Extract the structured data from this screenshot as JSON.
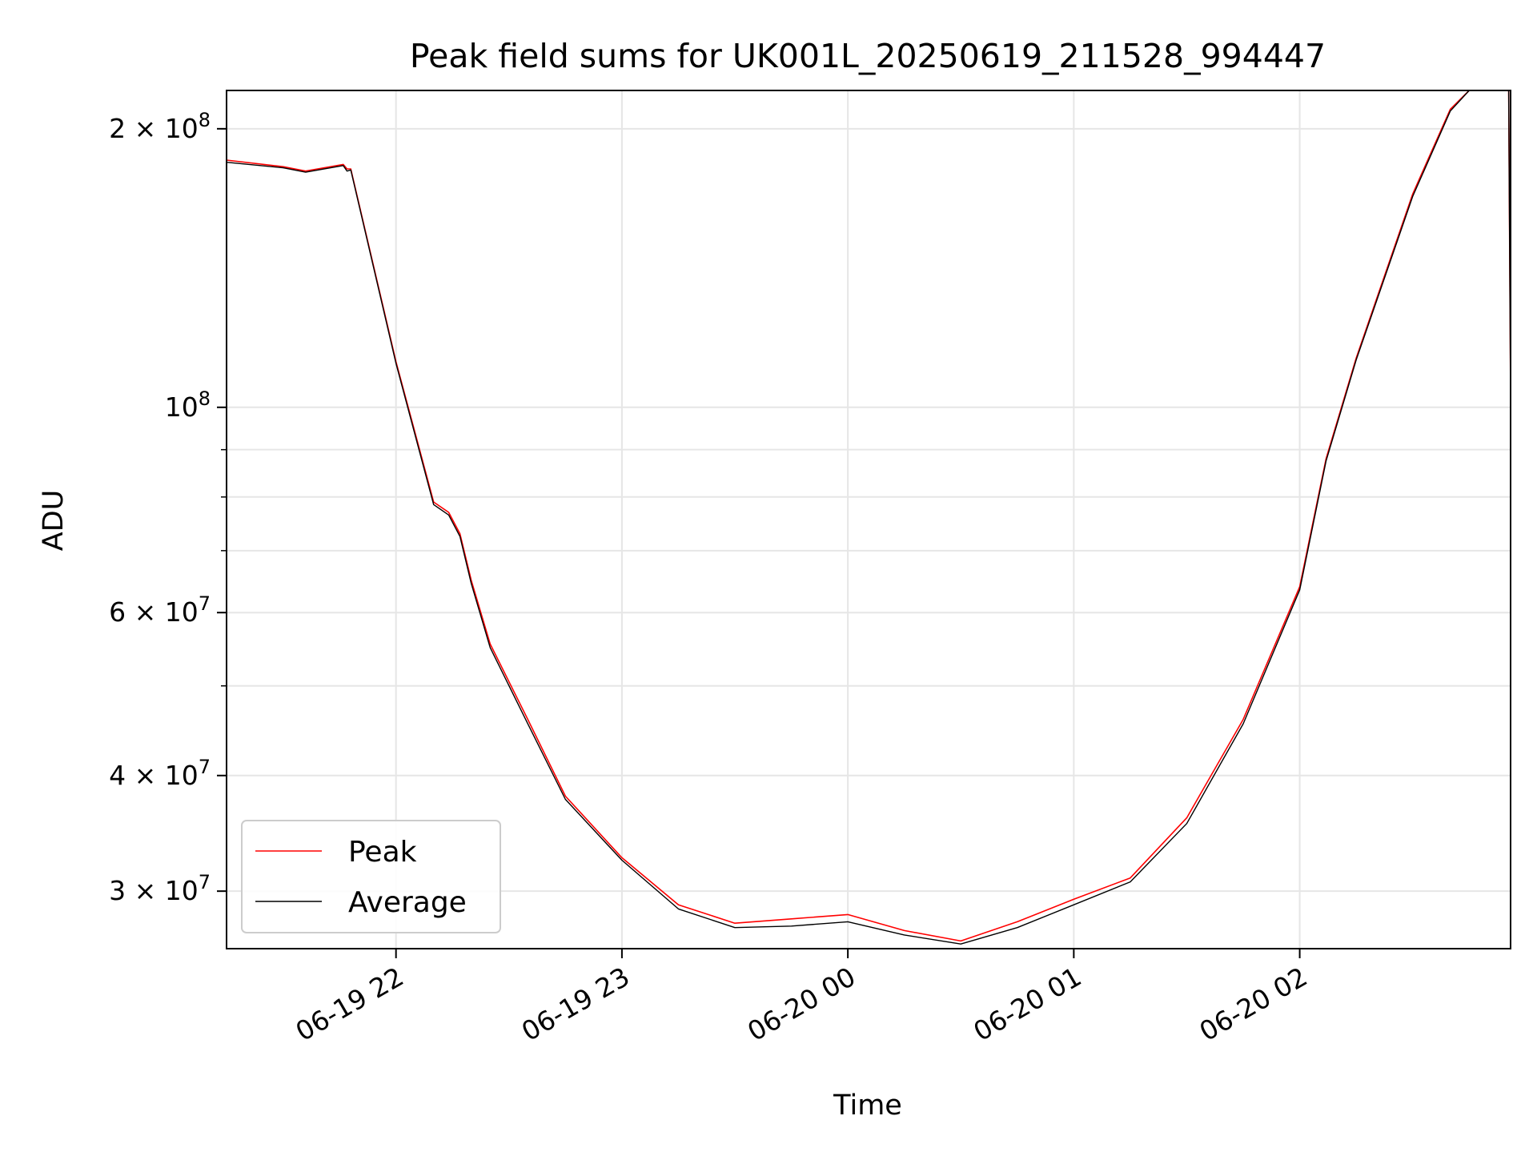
{
  "chart_data": {
    "type": "line",
    "title": "Peak field sums for UK001L_20250619_211528_994447",
    "xlabel": "Time",
    "ylabel": "ADU",
    "yscale": "log",
    "grid": true,
    "legend_placement": "lower-left",
    "xlim": [
      "2025-06-19 21:15",
      "2025-06-20 02:56"
    ],
    "ylim": [
      26000000,
      220000000
    ],
    "x_ticks": [
      {
        "value": "2025-06-19 22:00",
        "label": "06-19 22"
      },
      {
        "value": "2025-06-19 23:00",
        "label": "06-19 23"
      },
      {
        "value": "2025-06-20 00:00",
        "label": "06-20 00"
      },
      {
        "value": "2025-06-20 01:00",
        "label": "06-20 01"
      },
      {
        "value": "2025-06-20 02:00",
        "label": "06-20 02"
      }
    ],
    "y_ticks": [
      {
        "value": 200000000,
        "mant": "2",
        "exp": "8"
      },
      {
        "value": 100000000,
        "mant": "",
        "exp": "8"
      },
      {
        "value": 60000000,
        "mant": "6",
        "exp": "7"
      },
      {
        "value": 40000000,
        "mant": "4",
        "exp": "7"
      },
      {
        "value": 30000000,
        "mant": "3",
        "exp": "7"
      }
    ],
    "x": [
      "2025-06-19 21:15",
      "2025-06-19 21:30",
      "2025-06-19 21:36",
      "2025-06-19 21:46",
      "2025-06-19 21:47",
      "2025-06-19 21:48",
      "2025-06-19 22:00",
      "2025-06-19 22:10",
      "2025-06-19 22:14",
      "2025-06-19 22:17",
      "2025-06-19 22:20",
      "2025-06-19 22:25",
      "2025-06-19 22:35",
      "2025-06-19 22:45",
      "2025-06-19 23:00",
      "2025-06-19 23:15",
      "2025-06-19 23:30",
      "2025-06-19 23:45",
      "2025-06-20 00:00",
      "2025-06-20 00:15",
      "2025-06-20 00:30",
      "2025-06-20 00:45",
      "2025-06-20 01:00",
      "2025-06-20 01:15",
      "2025-06-20 01:30",
      "2025-06-20 01:45",
      "2025-06-20 02:00",
      "2025-06-20 02:07",
      "2025-06-20 02:15",
      "2025-06-20 02:30",
      "2025-06-20 02:40",
      "2025-06-20 02:45",
      "2025-06-20 02:55",
      "2025-06-20 02:55:30",
      "2025-06-20 02:56"
    ],
    "series": [
      {
        "name": "Peak",
        "color": "#ff0000",
        "values": [
          185000000,
          182000000,
          180000000,
          183000000,
          181000000,
          181000000,
          112000000,
          79000000,
          77000000,
          73000000,
          65000000,
          55500000,
          46000000,
          38000000,
          32600000,
          29000000,
          27700000,
          28000000,
          28300000,
          27200000,
          26500000,
          27800000,
          29400000,
          31000000,
          36000000,
          46000000,
          64000000,
          88000000,
          113000000,
          170000000,
          210000000,
          220000000,
          220000000,
          220000000,
          102000000
        ]
      },
      {
        "name": "Average",
        "color": "#000000",
        "values": [
          184000000,
          181500000,
          179500000,
          182500000,
          180000000,
          180500000,
          111500000,
          78500000,
          76500000,
          72500000,
          64500000,
          55000000,
          45500000,
          37700000,
          32400000,
          28700000,
          27400000,
          27500000,
          27800000,
          26900000,
          26300000,
          27400000,
          29000000,
          30700000,
          35500000,
          45500000,
          63500000,
          87500000,
          112500000,
          169000000,
          209000000,
          220000000,
          220000000,
          220000000,
          101500000
        ]
      }
    ]
  }
}
